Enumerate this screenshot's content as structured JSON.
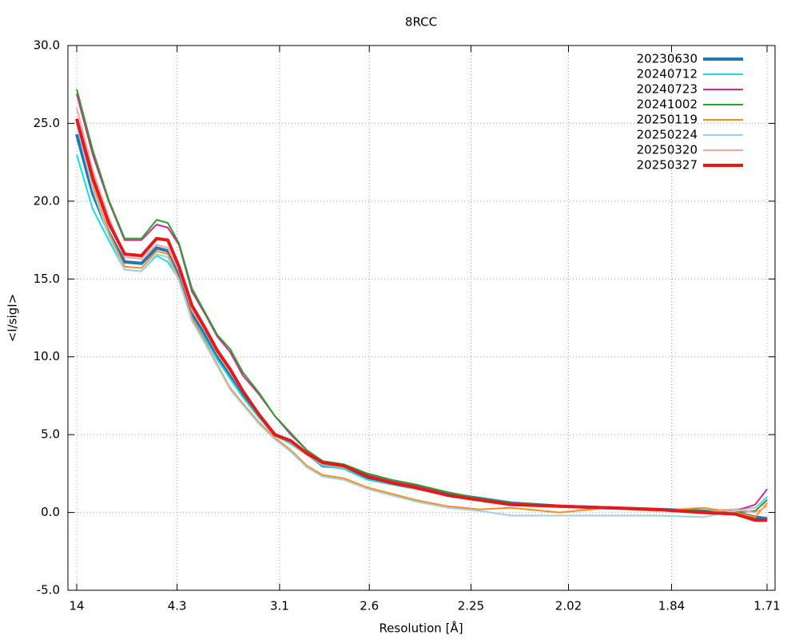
{
  "chart_data": {
    "type": "line",
    "title": "8RCC",
    "x_label": "Resolution [Å]",
    "y_label": "<I/sigI>",
    "x": [
      0.0051,
      0.0129,
      0.0207,
      0.0285,
      0.0367,
      0.0441,
      0.0496,
      0.055,
      0.0613,
      0.0675,
      0.0737,
      0.08,
      0.0862,
      0.094,
      0.1018,
      0.1096,
      0.1174,
      0.1252,
      0.1354,
      0.1471,
      0.1588,
      0.1705,
      0.1861,
      0.2017,
      0.2173,
      0.2407,
      0.2641,
      0.2875,
      0.3109,
      0.3265,
      0.3362,
      0.3421
    ],
    "series": [
      {
        "name": "20230630",
        "color": "#1f77b4",
        "line_width": 4,
        "values": [
          24.3,
          20.5,
          18.0,
          16.1,
          16.0,
          17.0,
          16.8,
          15.2,
          12.8,
          11.5,
          10.0,
          8.7,
          7.5,
          6.2,
          5.0,
          4.5,
          3.8,
          3.0,
          2.9,
          2.2,
          1.9,
          1.6,
          1.2,
          0.9,
          0.6,
          0.4,
          0.3,
          0.2,
          0.1,
          0.0,
          -0.3,
          -0.4
        ]
      },
      {
        "name": "20240712",
        "color": "#17dede",
        "line_width": 2,
        "values": [
          23.0,
          19.5,
          17.5,
          15.6,
          15.5,
          16.5,
          16.1,
          15.0,
          12.5,
          11.2,
          9.8,
          8.6,
          7.4,
          6.1,
          5.0,
          4.4,
          3.7,
          3.0,
          2.8,
          2.1,
          1.8,
          1.5,
          1.1,
          0.8,
          0.6,
          0.4,
          0.3,
          0.2,
          0.1,
          0.2,
          0.3,
          1.0
        ]
      },
      {
        "name": "20240723",
        "color": "#d62790",
        "line_width": 2,
        "values": [
          26.9,
          23.0,
          20.0,
          17.5,
          17.5,
          18.5,
          18.3,
          17.2,
          14.2,
          12.8,
          11.3,
          10.3,
          8.8,
          7.6,
          6.2,
          5.0,
          4.0,
          3.3,
          3.0,
          2.4,
          2.0,
          1.7,
          1.3,
          0.9,
          0.6,
          0.4,
          0.3,
          0.2,
          0.0,
          0.1,
          0.5,
          1.5
        ]
      },
      {
        "name": "20241002",
        "color": "#2ca02c",
        "line_width": 2,
        "values": [
          27.2,
          23.3,
          20.1,
          17.6,
          17.6,
          18.8,
          18.6,
          17.3,
          14.4,
          12.9,
          11.4,
          10.5,
          9.0,
          7.7,
          6.2,
          5.1,
          4.0,
          3.3,
          3.1,
          2.5,
          2.1,
          1.8,
          1.3,
          0.9,
          0.6,
          0.4,
          0.3,
          0.2,
          0.1,
          0.0,
          0.1,
          0.8
        ]
      },
      {
        "name": "20250119",
        "color": "#ff8c1a",
        "line_width": 2,
        "values": [
          25.0,
          21.0,
          18.0,
          15.8,
          15.7,
          16.8,
          16.6,
          15.0,
          12.5,
          11.0,
          9.5,
          8.0,
          7.0,
          5.8,
          4.8,
          4.0,
          3.0,
          2.4,
          2.2,
          1.6,
          1.2,
          0.8,
          0.4,
          0.2,
          0.3,
          0.0,
          0.3,
          0.1,
          0.3,
          0.0,
          -0.3,
          0.6
        ]
      },
      {
        "name": "20250224",
        "color": "#a6cee3",
        "line_width": 2,
        "values": [
          24.9,
          20.8,
          17.8,
          15.6,
          15.5,
          16.6,
          16.4,
          14.9,
          12.3,
          10.9,
          9.4,
          7.9,
          6.9,
          5.7,
          4.7,
          3.9,
          2.9,
          2.3,
          2.1,
          1.5,
          1.1,
          0.7,
          0.3,
          0.1,
          -0.2,
          -0.2,
          -0.2,
          -0.2,
          -0.3,
          0.1,
          0.3,
          0.9
        ]
      },
      {
        "name": "20250320",
        "color": "#f4a6a6",
        "line_width": 2,
        "values": [
          26.0,
          22.0,
          19.0,
          16.4,
          16.3,
          17.2,
          17.0,
          15.5,
          13.0,
          11.7,
          10.2,
          9.0,
          7.7,
          6.3,
          5.1,
          4.5,
          3.7,
          3.1,
          2.9,
          2.3,
          1.9,
          1.5,
          1.1,
          0.8,
          0.5,
          0.4,
          0.3,
          0.2,
          0.0,
          0.2,
          0.0,
          0.4
        ]
      },
      {
        "name": "20250327",
        "color": "#e31a1c",
        "line_width": 4,
        "values": [
          25.3,
          21.5,
          18.6,
          16.6,
          16.5,
          17.6,
          17.5,
          15.8,
          13.3,
          11.9,
          10.4,
          9.2,
          7.8,
          6.3,
          5.0,
          4.6,
          3.8,
          3.2,
          3.0,
          2.3,
          1.9,
          1.6,
          1.1,
          0.8,
          0.5,
          0.4,
          0.3,
          0.2,
          0.0,
          -0.1,
          -0.5,
          -0.5
        ]
      }
    ],
    "xlim": [
      0.0008,
      0.3459
    ],
    "xticks": [
      {
        "value": 0.0051,
        "label": "14"
      },
      {
        "value": 0.0541,
        "label": "4.3"
      },
      {
        "value": 0.1041,
        "label": "3.1"
      },
      {
        "value": 0.1479,
        "label": "2.6"
      },
      {
        "value": 0.1975,
        "label": "2.25"
      },
      {
        "value": 0.2451,
        "label": "2.02"
      },
      {
        "value": 0.2954,
        "label": "1.84"
      },
      {
        "value": 0.342,
        "label": "1.71"
      }
    ],
    "ylim": [
      -5,
      30
    ],
    "yticks": [
      {
        "value": 30,
        "label": "30.0"
      },
      {
        "value": 25,
        "label": "25.0"
      },
      {
        "value": 20,
        "label": "20.0"
      },
      {
        "value": 15,
        "label": "15.0"
      },
      {
        "value": 10,
        "label": "10.0"
      },
      {
        "value": 5,
        "label": "5.0"
      },
      {
        "value": 0,
        "label": "0.0"
      },
      {
        "value": -5,
        "label": "-5.0"
      }
    ],
    "grid": true,
    "legend": "top-right"
  }
}
